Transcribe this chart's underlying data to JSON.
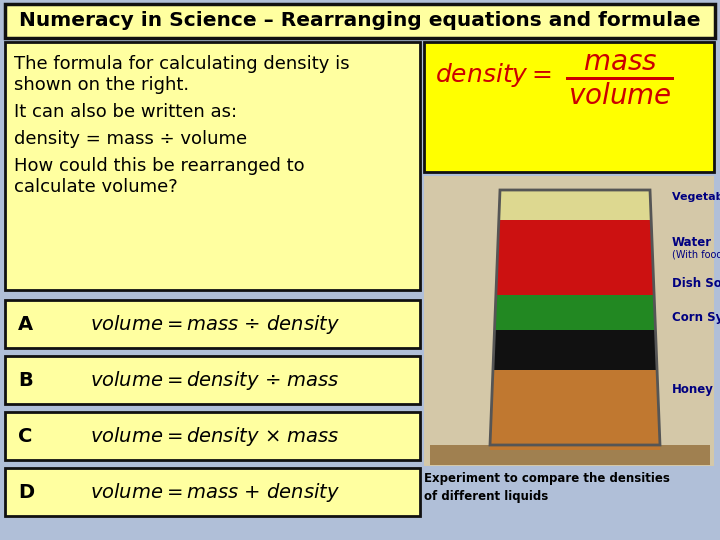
{
  "title": "Numeracy in Science – Rearranging equations and formulae",
  "bg_color": "#b0bfd8",
  "title_bg": "#ffffa0",
  "title_border": "#111111",
  "box_bg": "#ffffa0",
  "box_border": "#111111",
  "formula_color": "#cc0000",
  "experiment_text": "Experiment to compare the densities\nof different liquids",
  "desc_lines": [
    "The formula for calculating density is",
    "shown on the right.",
    " ",
    "It can also be written as:",
    " ",
    "density = mass ÷ volume",
    " ",
    "How could this be rearranged to",
    "calculate volume?"
  ],
  "options": [
    {
      "letter": "A",
      "formula": "volume = mass ÷ density"
    },
    {
      "letter": "B",
      "formula": "volume = density ÷ mass"
    },
    {
      "letter": "C",
      "formula": "volume = density × mass"
    },
    {
      "letter": "D",
      "formula": "volume = mass + density"
    }
  ],
  "liquid_layers": [
    {
      "color": "#e8e090",
      "label": "Vegetable Oil",
      "label_color": "#000080"
    },
    {
      "color": "#cc1111",
      "label": "Water",
      "label_color": "#000080"
    },
    {
      "color": "#228822",
      "label": "Dish Soap",
      "label_color": "#000080"
    },
    {
      "color": "#111111",
      "label": "Corn Syrup",
      "label_color": "#000080"
    },
    {
      "color": "#c07830",
      "label": "Honey",
      "label_color": "#000080"
    }
  ]
}
